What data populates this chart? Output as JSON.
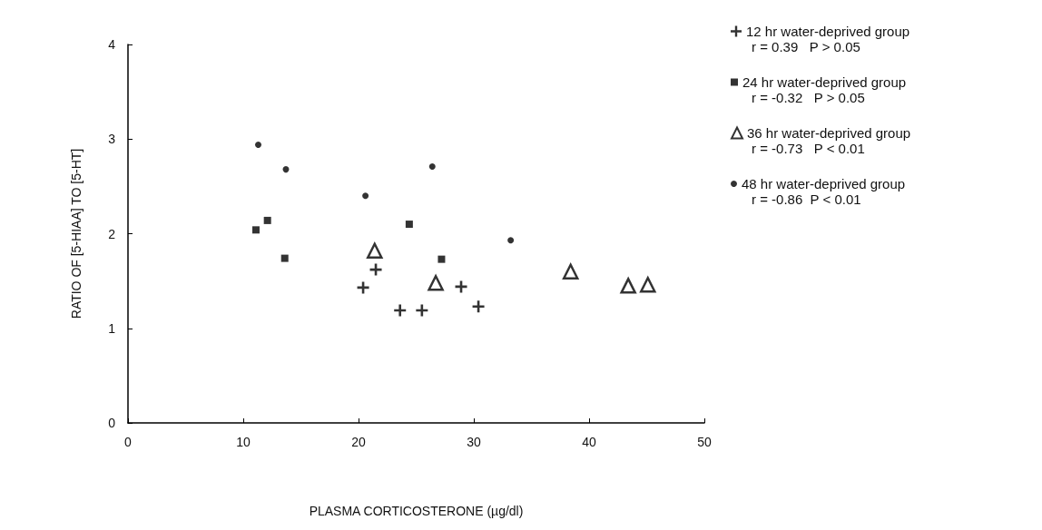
{
  "chart_data": {
    "type": "scatter",
    "xlabel": "PLASMA CORTICOSTERONE (µg/dl)",
    "ylabel": "RATIO OF [5-HIAA] TO [5-HT]",
    "xlim": [
      0,
      50
    ],
    "xticks": [
      0,
      10,
      20,
      30,
      40,
      50
    ],
    "ylim": [
      0,
      4
    ],
    "yticks": [
      0,
      1,
      2,
      3,
      4
    ],
    "grid": false,
    "legend": "right",
    "series": [
      {
        "name": "12 hr water-deprived group",
        "color": "#000000",
        "marker": "cross",
        "x": [
          20.4,
          21.5,
          23.6,
          25.5,
          28.9,
          30.4
        ],
        "values": [
          1.43,
          1.62,
          1.19,
          1.19,
          1.44,
          1.23
        ]
      },
      {
        "name": "24 hr water-deprived group",
        "color": "#000000",
        "marker": "square",
        "x": [
          11.1,
          12.1,
          13.6,
          24.4,
          27.2
        ],
        "values": [
          2.04,
          2.14,
          1.74,
          2.1,
          1.73
        ]
      },
      {
        "name": "36 hr water-deprived group",
        "color": "#000000",
        "marker": "triangle",
        "x": [
          21.4,
          26.7,
          38.4,
          43.4,
          45.1
        ],
        "values": [
          1.82,
          1.48,
          1.6,
          1.45,
          1.46
        ]
      },
      {
        "name": "48 hr water-deprived group",
        "color": "#000000",
        "marker": "circle",
        "x": [
          11.3,
          13.7,
          20.6,
          26.4,
          33.2
        ],
        "values": [
          2.94,
          2.68,
          2.4,
          2.71,
          1.93
        ]
      }
    ],
    "annotations": [
      "r = 0.39   P > 0.05",
      "r = -0.32   P > 0.05",
      "r = -0.73   P < 0.01",
      "r = -0.86  P < 0.01"
    ]
  }
}
